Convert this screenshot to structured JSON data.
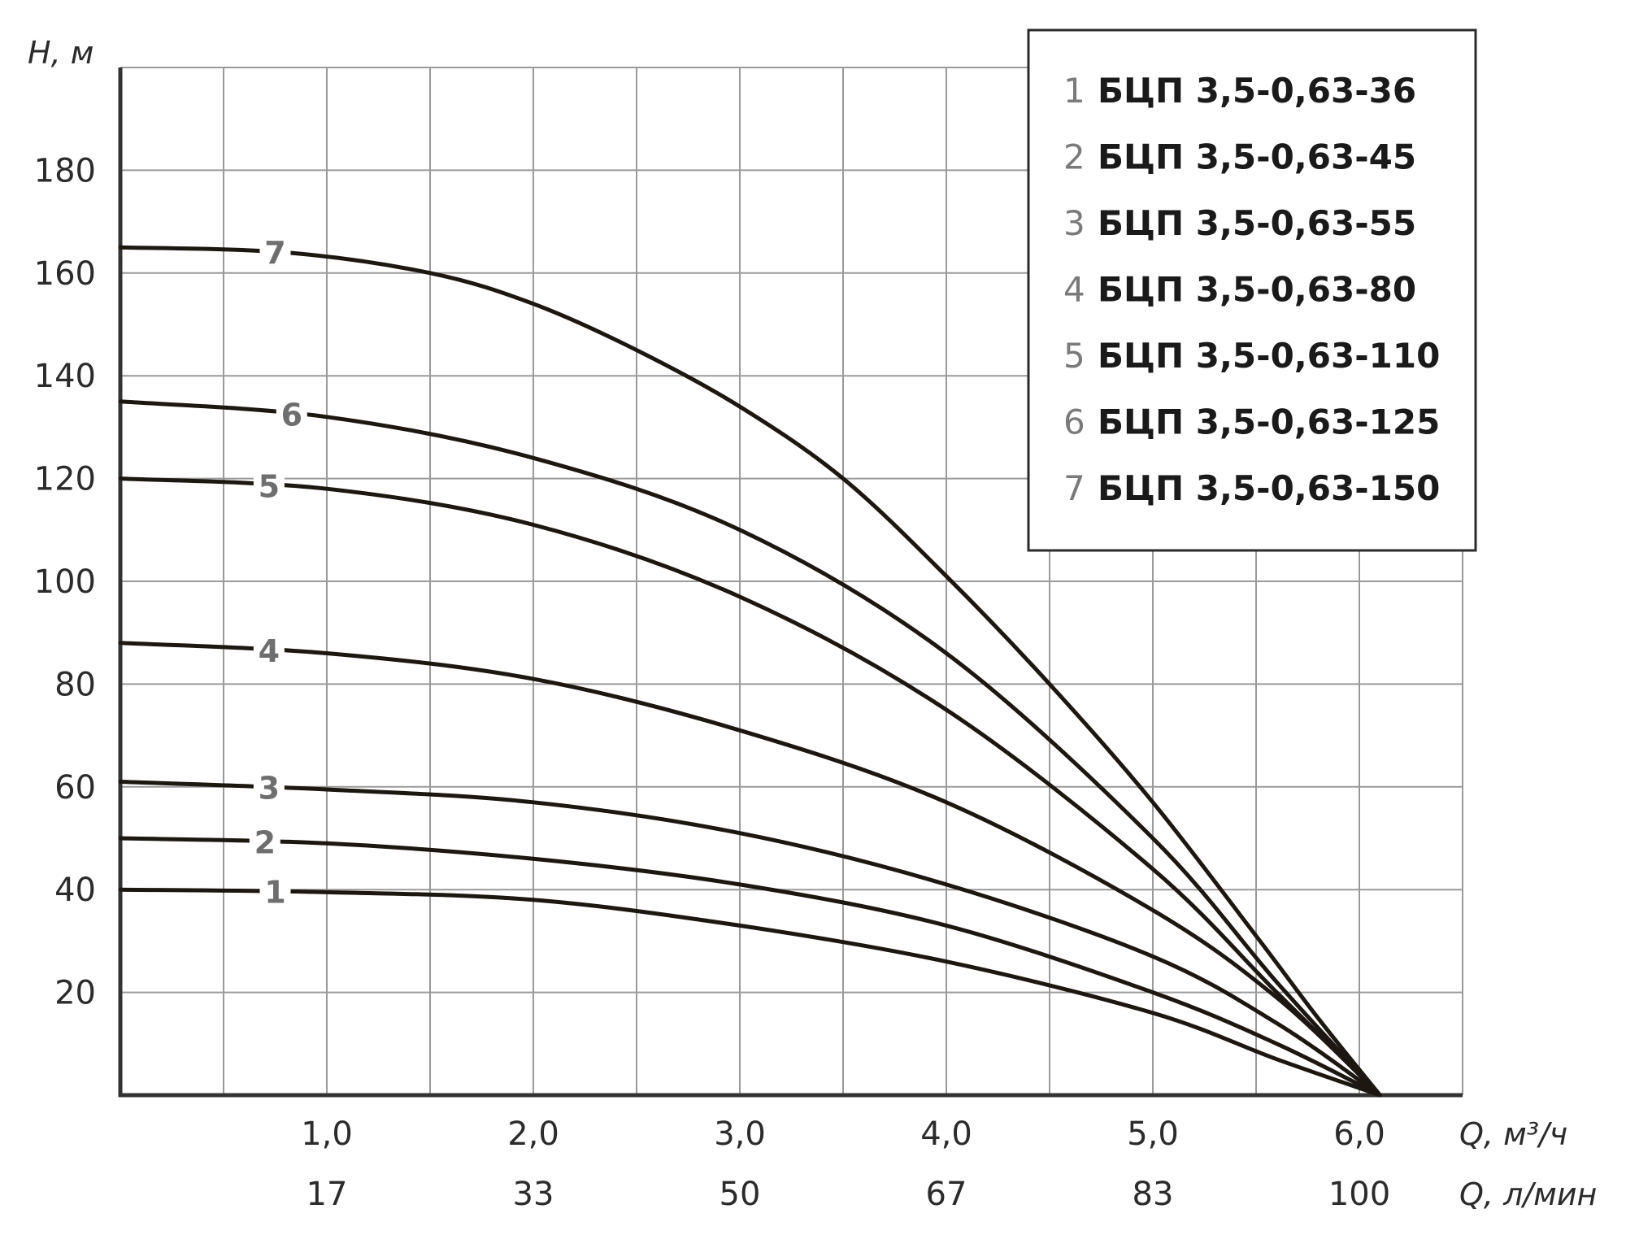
{
  "chart_data": {
    "type": "line",
    "y_axis_label": "H, м",
    "x_axis_label_primary": "Q, м³/ч",
    "x_axis_label_secondary": "Q, л/мин",
    "x_ticks": [
      {
        "q": 1.0,
        "label": "1,0",
        "lpm": "17"
      },
      {
        "q": 2.0,
        "label": "2,0",
        "lpm": "33"
      },
      {
        "q": 3.0,
        "label": "3,0",
        "lpm": "50"
      },
      {
        "q": 4.0,
        "label": "4,0",
        "lpm": "67"
      },
      {
        "q": 5.0,
        "label": "5,0",
        "lpm": "83"
      },
      {
        "q": 6.0,
        "label": "6,0",
        "lpm": "100"
      }
    ],
    "y_ticks": [
      {
        "h": 20,
        "label": "20"
      },
      {
        "h": 40,
        "label": "40"
      },
      {
        "h": 60,
        "label": "60"
      },
      {
        "h": 80,
        "label": "80"
      },
      {
        "h": 100,
        "label": "100"
      },
      {
        "h": 120,
        "label": "120"
      },
      {
        "h": 140,
        "label": "140"
      },
      {
        "h": 160,
        "label": "160"
      },
      {
        "h": 180,
        "label": "180"
      }
    ],
    "xlim": [
      0,
      6.5
    ],
    "ylim": [
      0,
      200
    ],
    "grid": true,
    "series": [
      {
        "id": "1",
        "name": "БЦП 3,5-0,63-36",
        "label_q": 0.75,
        "points": [
          [
            0,
            40
          ],
          [
            1,
            39.5
          ],
          [
            2,
            38
          ],
          [
            3,
            33
          ],
          [
            4,
            26
          ],
          [
            5,
            16
          ],
          [
            5.6,
            7
          ],
          [
            6.1,
            0
          ]
        ]
      },
      {
        "id": "2",
        "name": "БЦП 3,5-0,63-45",
        "label_q": 0.7,
        "points": [
          [
            0,
            50
          ],
          [
            1,
            49
          ],
          [
            2,
            46
          ],
          [
            3,
            41
          ],
          [
            4,
            33
          ],
          [
            5,
            20
          ],
          [
            5.6,
            10
          ],
          [
            6.1,
            0
          ]
        ]
      },
      {
        "id": "3",
        "name": "БЦП 3,5-0,63-55",
        "label_q": 0.72,
        "points": [
          [
            0,
            61
          ],
          [
            1,
            59.5
          ],
          [
            2,
            57
          ],
          [
            3,
            51
          ],
          [
            4,
            41
          ],
          [
            5,
            27
          ],
          [
            5.6,
            14
          ],
          [
            6.1,
            0
          ]
        ]
      },
      {
        "id": "4",
        "name": "БЦП 3,5-0,63-80",
        "label_q": 0.72,
        "points": [
          [
            0,
            88
          ],
          [
            1,
            86
          ],
          [
            2,
            81
          ],
          [
            3,
            71
          ],
          [
            4,
            57
          ],
          [
            5,
            36
          ],
          [
            5.6,
            19
          ],
          [
            6.1,
            0
          ]
        ]
      },
      {
        "id": "5",
        "name": "БЦП 3,5-0,63-110",
        "label_q": 0.72,
        "points": [
          [
            0,
            120
          ],
          [
            1,
            118
          ],
          [
            2,
            111
          ],
          [
            3,
            97
          ],
          [
            4,
            75
          ],
          [
            5,
            44
          ],
          [
            5.6,
            20
          ],
          [
            6.1,
            0
          ]
        ]
      },
      {
        "id": "6",
        "name": "БЦП 3,5-0,63-125",
        "label_q": 0.83,
        "points": [
          [
            0,
            135
          ],
          [
            1,
            132
          ],
          [
            2,
            124
          ],
          [
            3,
            110
          ],
          [
            4,
            86
          ],
          [
            5,
            50
          ],
          [
            5.6,
            22
          ],
          [
            6.1,
            0
          ]
        ]
      },
      {
        "id": "7",
        "name": "БЦП 3,5-0,63-150",
        "label_q": 0.75,
        "points": [
          [
            0,
            165
          ],
          [
            0.8,
            164
          ],
          [
            1.5,
            160
          ],
          [
            2,
            154
          ],
          [
            2.5,
            145
          ],
          [
            3,
            134
          ],
          [
            3.5,
            120
          ],
          [
            4,
            101
          ],
          [
            4.5,
            80
          ],
          [
            5,
            57
          ],
          [
            5.5,
            31
          ],
          [
            5.8,
            15
          ],
          [
            6.1,
            0
          ]
        ]
      }
    ]
  }
}
